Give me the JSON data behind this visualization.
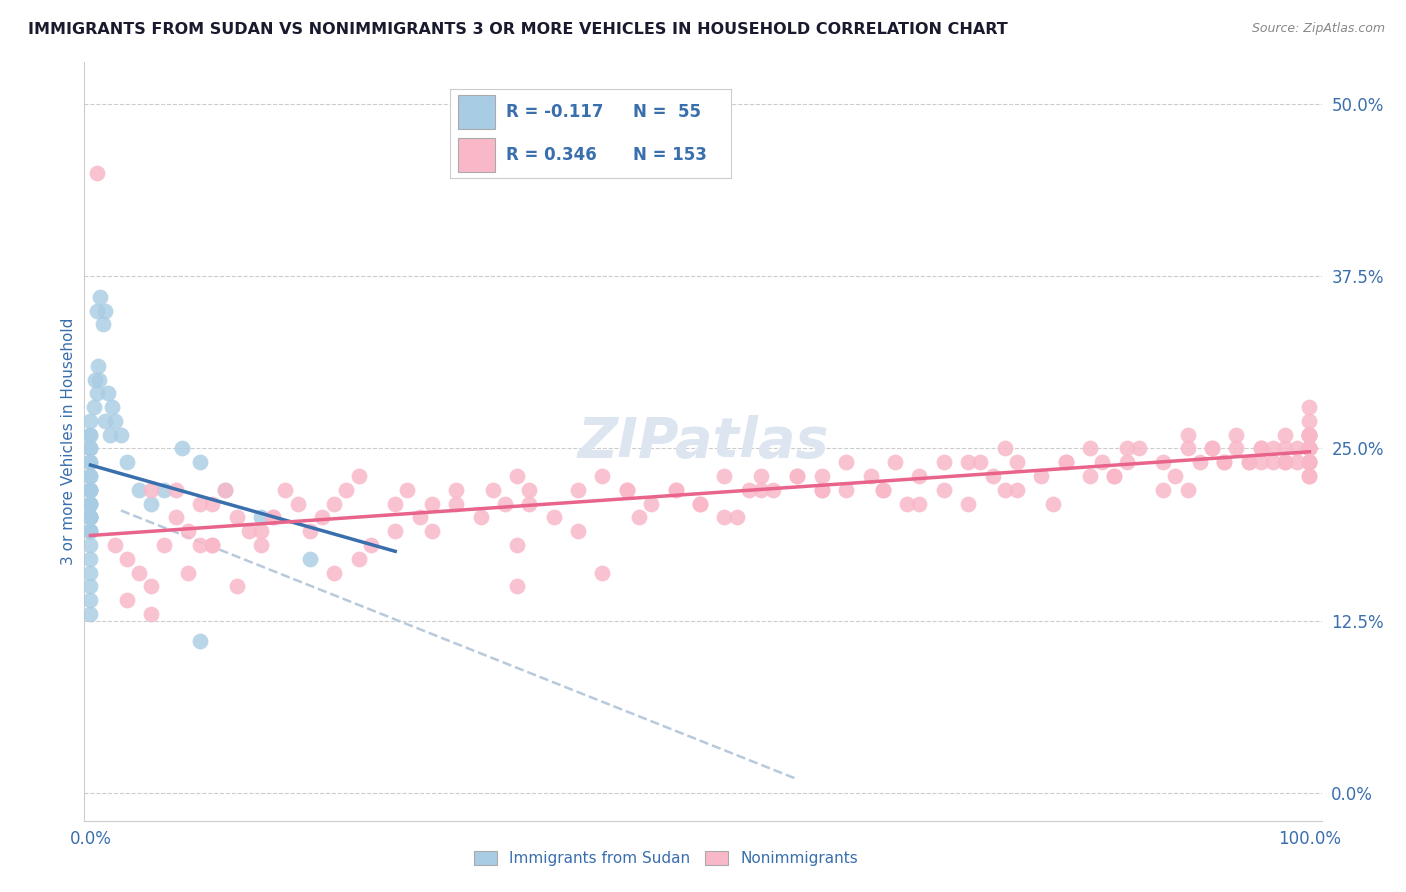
{
  "title": "IMMIGRANTS FROM SUDAN VS NONIMMIGRANTS 3 OR MORE VEHICLES IN HOUSEHOLD CORRELATION CHART",
  "source": "Source: ZipAtlas.com",
  "ylabel": "3 or more Vehicles in Household",
  "ytick_vals": [
    0.0,
    0.125,
    0.25,
    0.375,
    0.5
  ],
  "legend_label1": "Immigrants from Sudan",
  "legend_label2": "Nonimmigrants",
  "blue_scatter_color": "#a8cce4",
  "blue_line_color": "#3a6fad",
  "pink_scatter_color": "#f9b8c8",
  "pink_line_color": "#e8648a",
  "dash_line_color": "#b0c4d8",
  "title_color": "#1a1a2e",
  "axis_label_color": "#3a6fad",
  "source_color": "#888888",
  "background_color": "#ffffff",
  "grid_color": "#cccccc",
  "watermark_color": "#dde6f0",
  "legend_text_color": "#3a6fad",
  "blue_x": [
    0.0,
    0.0,
    0.0,
    0.0,
    0.0,
    0.0,
    0.0,
    0.0,
    0.0,
    0.0,
    0.0,
    0.0,
    0.0,
    0.0,
    0.0,
    0.0,
    0.0,
    0.0,
    0.0,
    0.0,
    0.0,
    0.0,
    0.0,
    0.0,
    0.0,
    0.0,
    0.0,
    0.0,
    0.0,
    0.0,
    0.003,
    0.004,
    0.005,
    0.006,
    0.007,
    0.012,
    0.014,
    0.016,
    0.018,
    0.02,
    0.025,
    0.03,
    0.04,
    0.05,
    0.06,
    0.075,
    0.09,
    0.11,
    0.14,
    0.18,
    0.005,
    0.008,
    0.01,
    0.012,
    0.09
  ],
  "blue_y": [
    0.2,
    0.21,
    0.22,
    0.2,
    0.19,
    0.21,
    0.22,
    0.2,
    0.19,
    0.2,
    0.21,
    0.22,
    0.2,
    0.18,
    0.19,
    0.16,
    0.17,
    0.15,
    0.14,
    0.13,
    0.24,
    0.23,
    0.25,
    0.22,
    0.26,
    0.27,
    0.25,
    0.26,
    0.24,
    0.23,
    0.28,
    0.3,
    0.29,
    0.31,
    0.3,
    0.27,
    0.29,
    0.26,
    0.28,
    0.27,
    0.26,
    0.24,
    0.22,
    0.21,
    0.22,
    0.25,
    0.24,
    0.22,
    0.2,
    0.17,
    0.35,
    0.36,
    0.34,
    0.35,
    0.11
  ],
  "pink_x": [
    0.02,
    0.03,
    0.04,
    0.05,
    0.05,
    0.06,
    0.07,
    0.08,
    0.09,
    0.1,
    0.1,
    0.11,
    0.12,
    0.13,
    0.14,
    0.15,
    0.16,
    0.17,
    0.18,
    0.19,
    0.2,
    0.21,
    0.22,
    0.23,
    0.25,
    0.26,
    0.27,
    0.28,
    0.3,
    0.32,
    0.33,
    0.34,
    0.35,
    0.36,
    0.38,
    0.4,
    0.42,
    0.44,
    0.46,
    0.48,
    0.5,
    0.52,
    0.54,
    0.55,
    0.56,
    0.58,
    0.6,
    0.62,
    0.64,
    0.65,
    0.66,
    0.68,
    0.7,
    0.72,
    0.74,
    0.75,
    0.76,
    0.78,
    0.8,
    0.82,
    0.83,
    0.84,
    0.85,
    0.86,
    0.88,
    0.89,
    0.9,
    0.91,
    0.92,
    0.93,
    0.94,
    0.95,
    0.96,
    0.96,
    0.97,
    0.97,
    0.98,
    0.98,
    0.99,
    0.99,
    1.0,
    1.0,
    1.0,
    1.0,
    1.0,
    1.0,
    1.0,
    1.0,
    1.0,
    1.0,
    0.03,
    0.05,
    0.08,
    0.1,
    0.12,
    0.14,
    0.2,
    0.25,
    0.3,
    0.35,
    0.4,
    0.45,
    0.5,
    0.55,
    0.6,
    0.65,
    0.7,
    0.75,
    0.8,
    0.85,
    0.9,
    0.92,
    0.94,
    0.96,
    0.98,
    1.0,
    1.0,
    1.0,
    1.0,
    1.0,
    0.07,
    0.09,
    0.15,
    0.22,
    0.28,
    0.36,
    0.44,
    0.52,
    0.6,
    0.68,
    0.76,
    0.84,
    0.9,
    0.95,
    0.98,
    1.0,
    1.0,
    1.0,
    0.48,
    0.58,
    0.67,
    0.73,
    0.79,
    0.35,
    0.42,
    0.53,
    0.62,
    0.72,
    0.82,
    0.88,
    0.93,
    1.0,
    1.0,
    0.005
  ],
  "pink_y": [
    0.18,
    0.14,
    0.16,
    0.15,
    0.22,
    0.18,
    0.2,
    0.19,
    0.21,
    0.18,
    0.21,
    0.22,
    0.2,
    0.19,
    0.18,
    0.2,
    0.22,
    0.21,
    0.19,
    0.2,
    0.21,
    0.22,
    0.23,
    0.18,
    0.21,
    0.22,
    0.2,
    0.21,
    0.22,
    0.2,
    0.22,
    0.21,
    0.23,
    0.22,
    0.2,
    0.22,
    0.23,
    0.22,
    0.21,
    0.22,
    0.21,
    0.23,
    0.22,
    0.23,
    0.22,
    0.23,
    0.22,
    0.24,
    0.23,
    0.22,
    0.24,
    0.23,
    0.22,
    0.24,
    0.23,
    0.22,
    0.24,
    0.23,
    0.24,
    0.25,
    0.24,
    0.23,
    0.24,
    0.25,
    0.24,
    0.23,
    0.25,
    0.24,
    0.25,
    0.24,
    0.25,
    0.24,
    0.25,
    0.24,
    0.25,
    0.24,
    0.25,
    0.24,
    0.25,
    0.24,
    0.25,
    0.24,
    0.23,
    0.24,
    0.25,
    0.26,
    0.24,
    0.25,
    0.26,
    0.25,
    0.17,
    0.13,
    0.16,
    0.18,
    0.15,
    0.19,
    0.16,
    0.19,
    0.21,
    0.18,
    0.19,
    0.2,
    0.21,
    0.22,
    0.23,
    0.22,
    0.24,
    0.25,
    0.24,
    0.25,
    0.26,
    0.25,
    0.26,
    0.25,
    0.26,
    0.24,
    0.25,
    0.26,
    0.25,
    0.26,
    0.22,
    0.18,
    0.2,
    0.17,
    0.19,
    0.21,
    0.22,
    0.2,
    0.22,
    0.21,
    0.22,
    0.23,
    0.22,
    0.24,
    0.24,
    0.27,
    0.28,
    0.26,
    0.22,
    0.23,
    0.21,
    0.24,
    0.21,
    0.15,
    0.16,
    0.2,
    0.22,
    0.21,
    0.23,
    0.22,
    0.24,
    0.25,
    0.23,
    0.45
  ]
}
